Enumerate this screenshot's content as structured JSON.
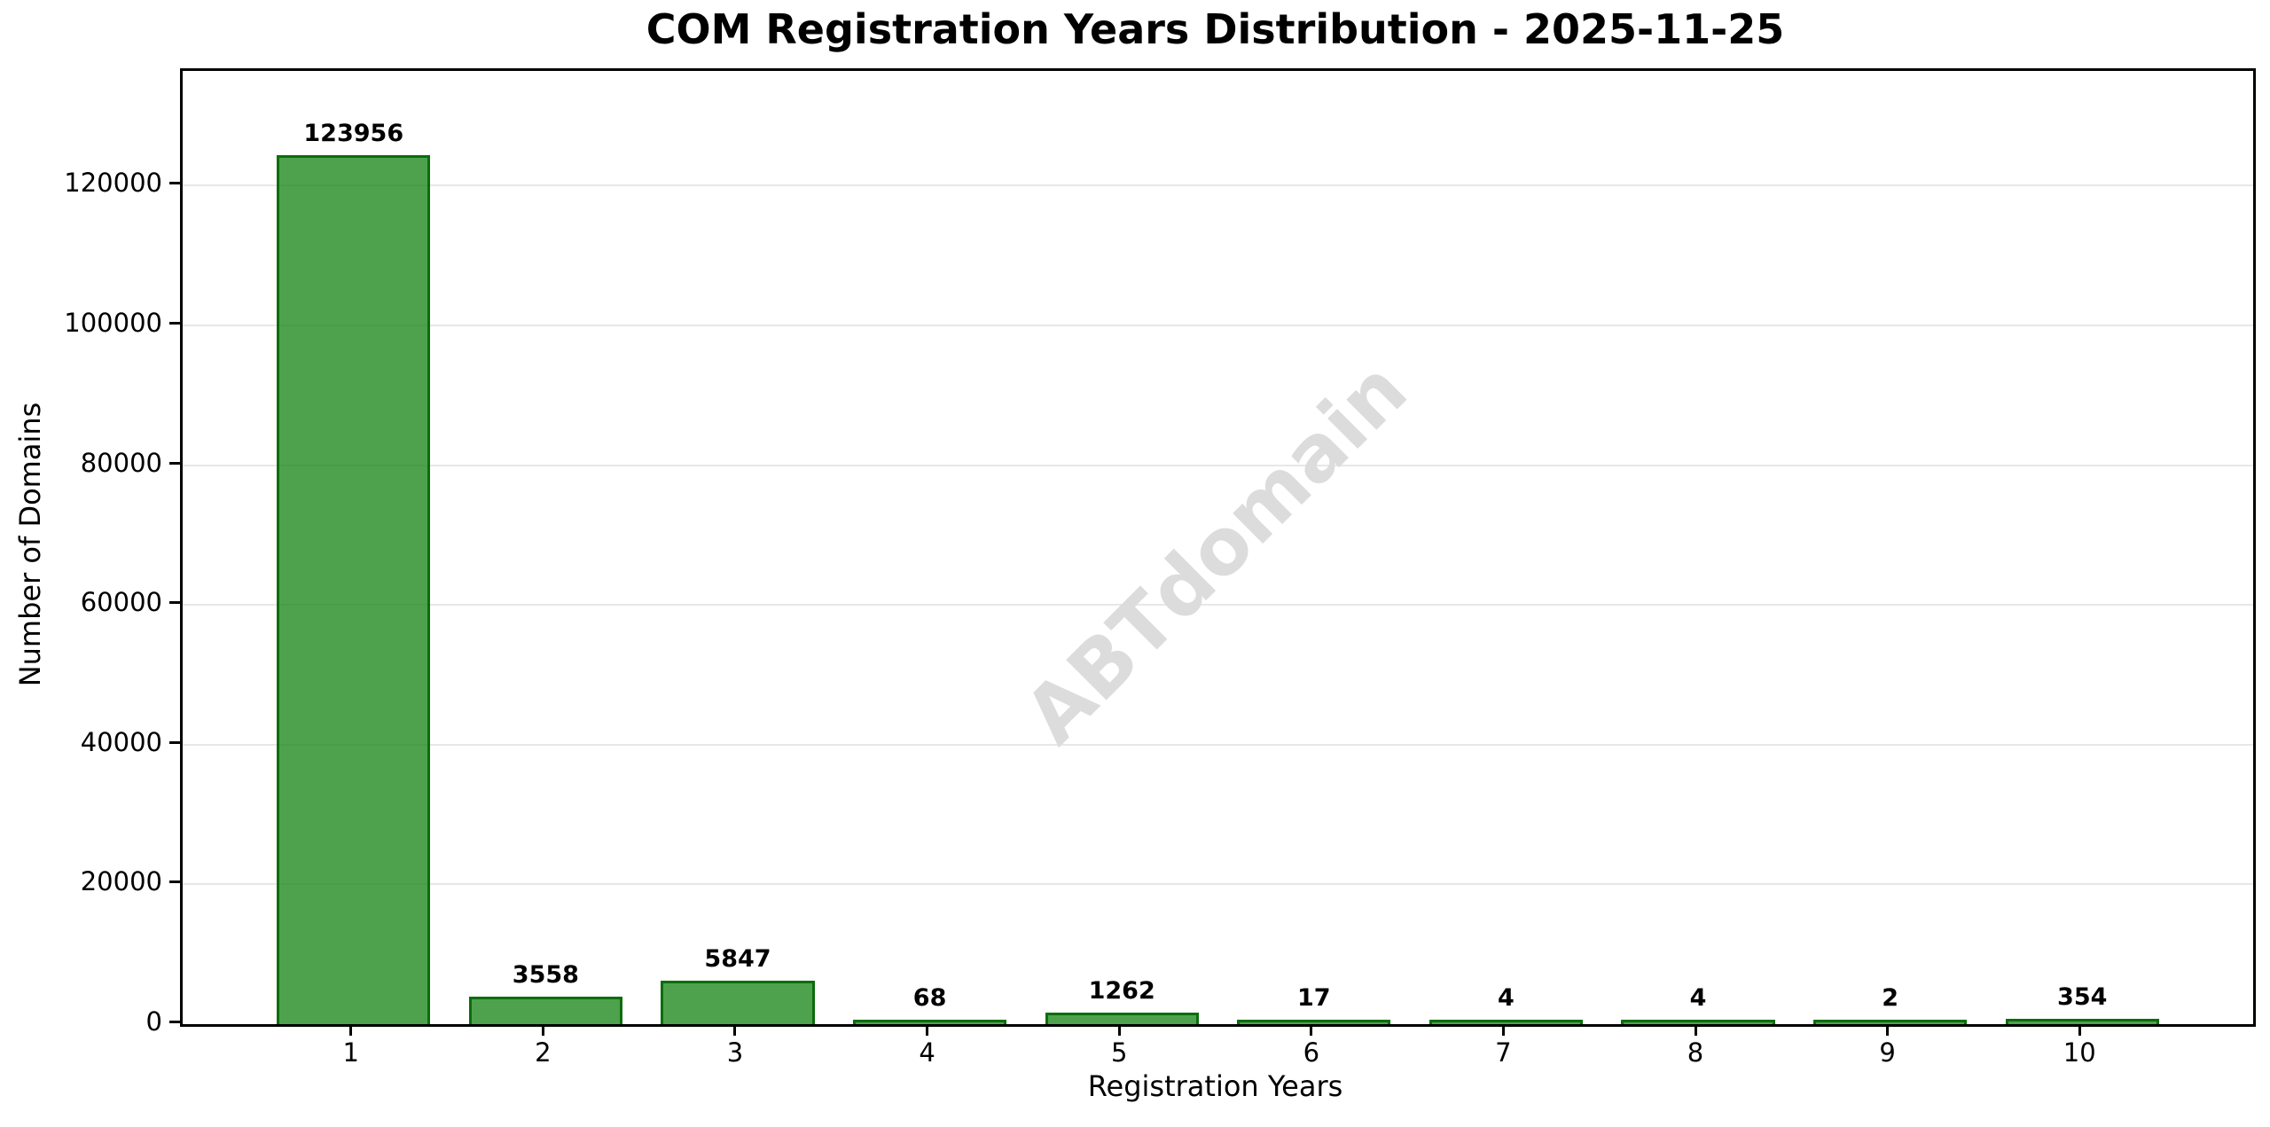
{
  "chart_data": {
    "type": "bar",
    "title": "COM Registration Years Distribution - 2025-11-25",
    "xlabel": "Registration Years",
    "ylabel": "Number of Domains",
    "categories": [
      "1",
      "2",
      "3",
      "4",
      "5",
      "6",
      "7",
      "8",
      "9",
      "10"
    ],
    "values": [
      123956,
      3558,
      5847,
      68,
      1262,
      17,
      4,
      4,
      2,
      354
    ],
    "bar_labels": [
      "123956",
      "3558",
      "5847",
      "68",
      "1262",
      "17",
      "4",
      "4",
      "2",
      "354"
    ],
    "yticks": [
      0,
      20000,
      40000,
      60000,
      80000,
      100000,
      120000
    ],
    "ytick_labels": [
      "0",
      "20000",
      "40000",
      "60000",
      "80000",
      "100000",
      "120000"
    ],
    "ylim": [
      0,
      136400
    ],
    "xlim": [
      0.11,
      10.89
    ],
    "bar_width": 0.8,
    "grid": "horizontal-only",
    "legend": "none",
    "watermark": "ABTdomain",
    "colors": {
      "bar_fill": "rgba(34,139,34,0.8)",
      "bar_edge": "rgba(0,100,0,0.85)",
      "grid_line": "#e7e7e7",
      "axis": "#000000",
      "watermark": "#dcdcdc",
      "background": "#ffffff",
      "text": "#000000"
    }
  }
}
